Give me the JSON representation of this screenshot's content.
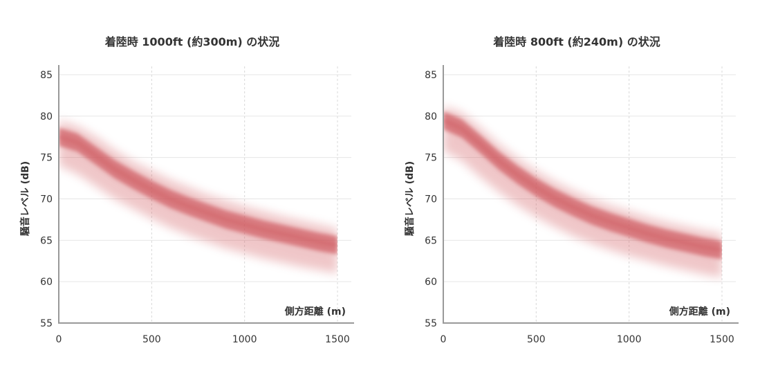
{
  "colors": {
    "band": "#d35f64",
    "core": "#cf5a60",
    "axis": "#999999",
    "grid": "#e6e6e6"
  },
  "chart_data": [
    {
      "type": "area",
      "title": "着陸時 1000ft (約300m) の状況",
      "xlabel": "側方距離 (m)",
      "ylabel": "騒音レベル (dB)",
      "xlim": [
        0,
        1500
      ],
      "ylim": [
        55,
        85
      ],
      "xticks": [
        "0",
        "500",
        "1000",
        "1500"
      ],
      "yticks": [
        "55",
        "60",
        "65",
        "70",
        "75",
        "80",
        "85"
      ],
      "grid": true,
      "series": [
        {
          "x": [
            0,
            100,
            200,
            300,
            400,
            500,
            600,
            700,
            800,
            900,
            1000,
            1100,
            1200,
            1300,
            1400,
            1500
          ],
          "values": [
            77.5,
            76.8,
            75.2,
            73.6,
            72.3,
            71.1,
            70.0,
            69.1,
            68.3,
            67.5,
            66.9,
            66.3,
            65.8,
            65.3,
            64.8,
            64.4
          ],
          "lower": [
            74.0,
            73.0,
            71.5,
            70.0,
            68.8,
            67.6,
            66.5,
            65.6,
            64.8,
            64.0,
            63.4,
            62.8,
            62.3,
            61.8,
            61.4,
            61.0
          ],
          "upper": [
            79.5,
            78.8,
            77.5,
            75.9,
            74.5,
            73.4,
            72.3,
            71.4,
            70.5,
            69.8,
            69.1,
            68.5,
            67.9,
            67.4,
            66.9,
            66.4
          ]
        }
      ]
    },
    {
      "type": "area",
      "title": "着陸時 800ft (約240m) の状況",
      "xlabel": "側方距離 (m)",
      "ylabel": "騒音レベル (dB)",
      "xlim": [
        0,
        1500
      ],
      "ylim": [
        55,
        85
      ],
      "xticks": [
        "0",
        "500",
        "1000",
        "1500"
      ],
      "yticks": [
        "55",
        "60",
        "65",
        "70",
        "75",
        "80",
        "85"
      ],
      "grid": true,
      "series": [
        {
          "x": [
            0,
            100,
            200,
            300,
            400,
            500,
            600,
            700,
            800,
            900,
            1000,
            1100,
            1200,
            1300,
            1400,
            1500
          ],
          "values": [
            79.5,
            78.5,
            76.6,
            74.6,
            72.9,
            71.4,
            70.1,
            69.0,
            68.0,
            67.2,
            66.5,
            65.8,
            65.2,
            64.7,
            64.2,
            63.8
          ],
          "lower": [
            75.8,
            74.6,
            72.6,
            70.8,
            69.2,
            67.8,
            66.6,
            65.5,
            64.6,
            63.8,
            63.1,
            62.5,
            61.9,
            61.4,
            60.9,
            60.5
          ],
          "upper": [
            81.2,
            80.4,
            78.6,
            76.6,
            74.9,
            73.4,
            72.1,
            71.0,
            70.0,
            69.2,
            68.5,
            67.8,
            67.2,
            66.7,
            66.2,
            65.8
          ]
        }
      ]
    }
  ]
}
